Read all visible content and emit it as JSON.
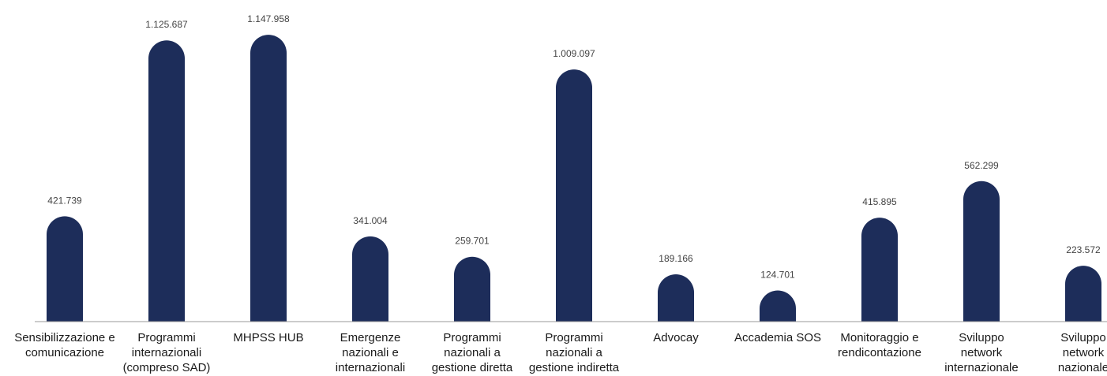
{
  "chart_data": {
    "type": "bar",
    "categories": [
      [
        "Sensibilizzazione e",
        "comunicazione"
      ],
      [
        "Programmi",
        "internazionali",
        "(compreso SAD)"
      ],
      [
        "MHPSS HUB"
      ],
      [
        "Emergenze",
        "nazionali e",
        "internazionali"
      ],
      [
        "Programmi",
        "nazionali a",
        "gestione diretta"
      ],
      [
        "Programmi",
        "nazionali a",
        "gestione indiretta"
      ],
      [
        "Advocay"
      ],
      [
        "Accademia SOS"
      ],
      [
        "Monitoraggio e",
        "rendicontazione"
      ],
      [
        "Sviluppo",
        "network",
        "internazionale"
      ],
      [
        "Sviluppo",
        "network",
        "nazionale"
      ]
    ],
    "values": [
      421739,
      1125687,
      1147958,
      341004,
      259701,
      1009097,
      189166,
      124701,
      415895,
      562299,
      223572
    ],
    "value_labels": [
      "421.739",
      "1.125.687",
      "1.147.958",
      "341.004",
      "259.701",
      "1.009.097",
      "189.166",
      "124.701",
      "415.895",
      "562.299",
      "223.572"
    ],
    "title": "",
    "xlabel": "",
    "ylabel": "",
    "ylim": [
      0,
      1180000
    ],
    "grid": false,
    "colors": {
      "bar": "#1d2d5a",
      "axis": "#999999"
    }
  }
}
